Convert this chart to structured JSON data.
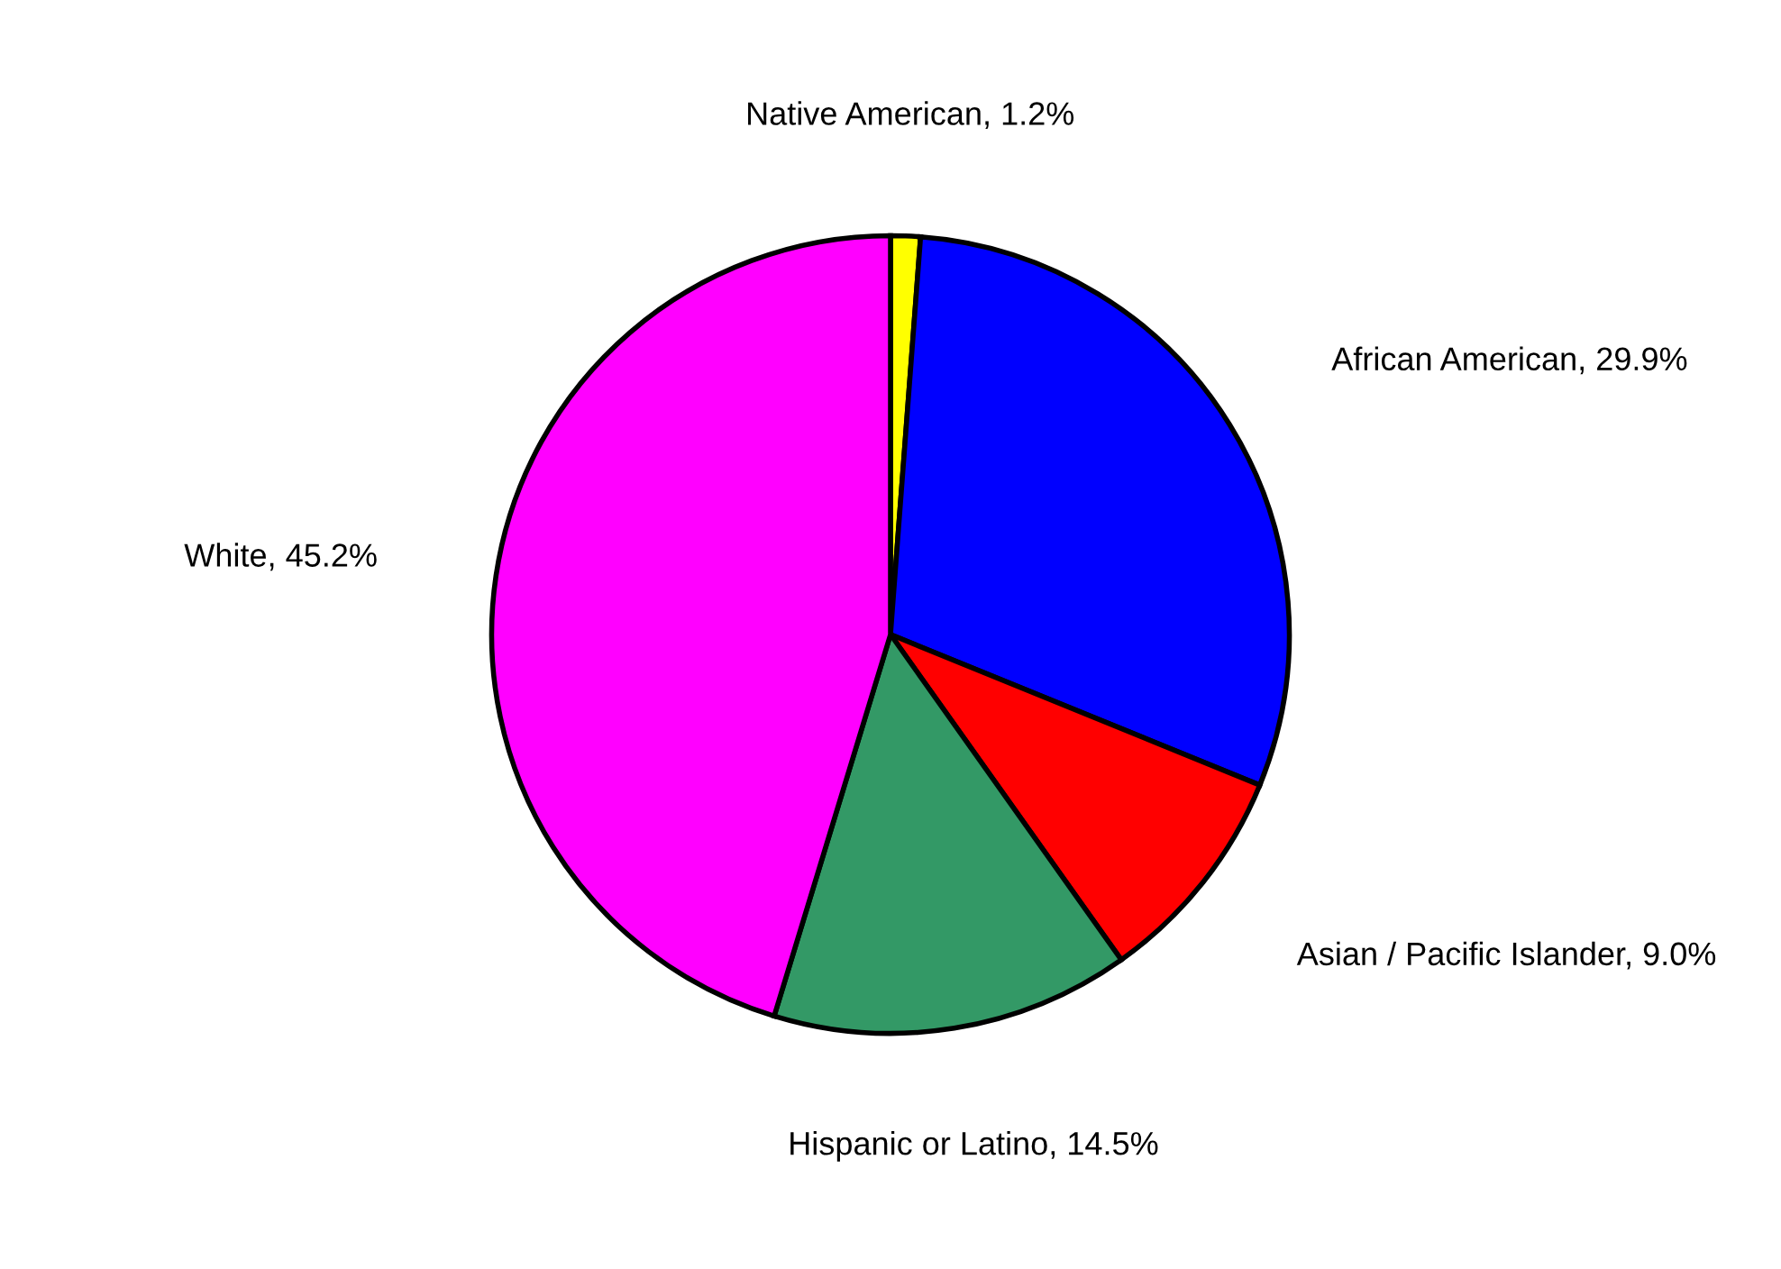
{
  "chart_data": {
    "type": "pie",
    "categories": [
      "Native American",
      "African American",
      "Asian / Pacific Islander",
      "Hispanic or Latino",
      "White"
    ],
    "values": [
      1.2,
      29.9,
      9.0,
      14.5,
      45.2
    ],
    "value_labels": [
      "1.2%",
      "29.9%",
      "9.0%",
      "14.5%",
      "45.2%"
    ],
    "colors": [
      "#ffff00",
      "#0000ff",
      "#ff0000",
      "#339966",
      "#ff00ff"
    ]
  }
}
